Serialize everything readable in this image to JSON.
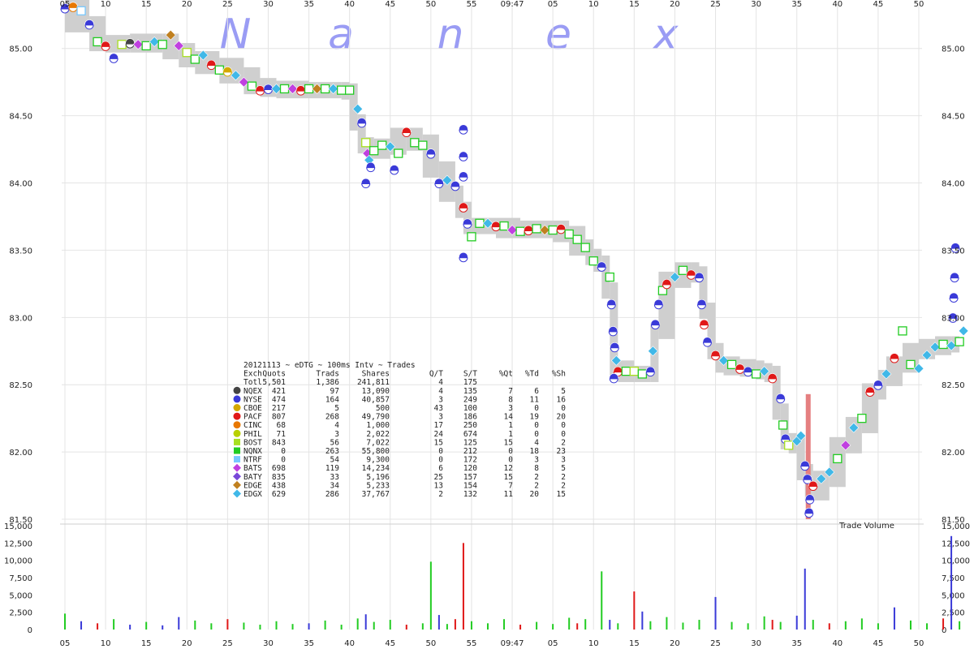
{
  "watermark": [
    "N",
    "a",
    "n",
    "e",
    "x"
  ],
  "chart_data": {
    "type": "scatter",
    "x_tick_labels": [
      "05",
      "10",
      "15",
      "20",
      "25",
      "30",
      "35",
      "40",
      "45",
      "50",
      "55",
      "09:47",
      "05",
      "10",
      "15",
      "20",
      "25",
      "30",
      "35",
      "40",
      "45",
      "50"
    ],
    "y_tick_labels": [
      "85.00",
      "84.50",
      "84.00",
      "83.50",
      "83.00",
      "82.50",
      "82.00",
      "81.50"
    ],
    "ylim": [
      81.5,
      85.3
    ],
    "volume_tick_labels": [
      "15,000",
      "12,500",
      "10,000",
      "7,500",
      "5,000",
      "2,500",
      "0"
    ],
    "volume_label": "Trade Volume",
    "volume_ylim": [
      0,
      15000
    ],
    "price_path": [
      [
        0,
        85.3
      ],
      [
        3,
        85.18
      ],
      [
        5,
        85.04
      ],
      [
        8,
        85.03
      ],
      [
        12,
        85.05
      ],
      [
        14,
        84.98
      ],
      [
        16,
        84.92
      ],
      [
        19,
        84.87
      ],
      [
        22,
        84.8
      ],
      [
        24,
        84.72
      ],
      [
        26,
        84.7
      ],
      [
        30,
        84.69
      ],
      [
        34,
        84.69
      ],
      [
        35,
        84.68
      ],
      [
        36,
        84.45
      ],
      [
        37,
        84.28
      ],
      [
        38,
        84.24
      ],
      [
        40,
        84.27
      ],
      [
        42,
        84.35
      ],
      [
        44,
        84.3
      ],
      [
        46,
        84.1
      ],
      [
        48,
        83.92
      ],
      [
        49,
        83.8
      ],
      [
        50,
        83.68
      ],
      [
        53,
        83.68
      ],
      [
        56,
        83.65
      ],
      [
        60,
        83.66
      ],
      [
        62,
        83.62
      ],
      [
        64,
        83.52
      ],
      [
        65,
        83.45
      ],
      [
        66,
        83.4
      ],
      [
        67,
        83.2
      ],
      [
        68,
        82.62
      ],
      [
        70,
        82.58
      ],
      [
        72,
        82.58
      ],
      [
        73,
        82.9
      ],
      [
        75,
        83.28
      ],
      [
        77,
        83.35
      ],
      [
        78,
        83.32
      ],
      [
        79,
        83.05
      ],
      [
        80,
        82.75
      ],
      [
        81,
        82.65
      ],
      [
        83,
        82.63
      ],
      [
        85,
        82.62
      ],
      [
        86,
        82.6
      ],
      [
        87,
        82.58
      ],
      [
        88,
        82.3
      ],
      [
        89,
        82.08
      ],
      [
        90,
        82.05
      ],
      [
        91,
        81.85
      ],
      [
        92,
        81.7
      ],
      [
        94,
        81.8
      ],
      [
        96,
        82.05
      ],
      [
        98,
        82.2
      ],
      [
        100,
        82.45
      ],
      [
        101,
        82.55
      ],
      [
        103,
        82.65
      ],
      [
        105,
        82.75
      ],
      [
        107,
        82.78
      ],
      [
        109,
        82.8
      ],
      [
        110,
        82.8
      ]
    ],
    "exchanges": [
      {
        "name": "NQEX",
        "color": "#444444",
        "shape": "circle"
      },
      {
        "name": "NYSE",
        "color": "#3a3ad8",
        "shape": "circle"
      },
      {
        "name": "CBOE",
        "color": "#d4a800",
        "shape": "circle"
      },
      {
        "name": "PACF",
        "color": "#e01818",
        "shape": "circle"
      },
      {
        "name": "CINC",
        "color": "#e87800",
        "shape": "circle"
      },
      {
        "name": "PHIL",
        "color": "#b8d000",
        "shape": "circle"
      },
      {
        "name": "BOST",
        "color": "#a8e020",
        "shape": "square"
      },
      {
        "name": "NQNX",
        "color": "#22cc22",
        "shape": "square"
      },
      {
        "name": "NTRF",
        "color": "#78c8ff",
        "shape": "square"
      },
      {
        "name": "BATS",
        "color": "#c040e0",
        "shape": "diamond"
      },
      {
        "name": "BATY",
        "color": "#7848d8",
        "shape": "diamond"
      },
      {
        "name": "EDGE",
        "color": "#c08020",
        "shape": "diamond"
      },
      {
        "name": "EDGX",
        "color": "#40b8e8",
        "shape": "diamond"
      }
    ],
    "trades": [
      [
        0,
        85.3,
        1
      ],
      [
        1,
        85.31,
        4
      ],
      [
        2,
        85.28,
        8
      ],
      [
        3,
        85.18,
        1
      ],
      [
        4,
        85.05,
        7
      ],
      [
        5,
        85.02,
        3
      ],
      [
        6,
        84.93,
        1
      ],
      [
        7,
        85.03,
        6
      ],
      [
        8,
        85.04,
        0
      ],
      [
        9,
        85.03,
        9
      ],
      [
        10,
        85.02,
        7
      ],
      [
        11,
        85.05,
        12
      ],
      [
        12,
        85.03,
        7
      ],
      [
        13,
        85.1,
        11
      ],
      [
        14,
        85.02,
        9
      ],
      [
        15,
        84.97,
        6
      ],
      [
        16,
        84.92,
        7
      ],
      [
        17,
        84.95,
        12
      ],
      [
        18,
        84.88,
        3
      ],
      [
        19,
        84.84,
        7
      ],
      [
        20,
        84.83,
        2
      ],
      [
        21,
        84.8,
        12
      ],
      [
        22,
        84.75,
        9
      ],
      [
        23,
        84.72,
        7
      ],
      [
        24,
        84.69,
        3
      ],
      [
        25,
        84.7,
        1
      ],
      [
        26,
        84.7,
        12
      ],
      [
        27,
        84.7,
        7
      ],
      [
        28,
        84.7,
        9
      ],
      [
        29,
        84.69,
        3
      ],
      [
        30,
        84.7,
        7
      ],
      [
        31,
        84.7,
        11
      ],
      [
        32,
        84.7,
        7
      ],
      [
        33,
        84.7,
        12
      ],
      [
        34,
        84.69,
        7
      ],
      [
        35,
        84.69,
        7
      ],
      [
        36,
        84.55,
        12
      ],
      [
        36.5,
        84.45,
        1
      ],
      [
        37,
        84.3,
        6
      ],
      [
        37.2,
        84.22,
        9
      ],
      [
        37.4,
        84.17,
        12
      ],
      [
        37.6,
        84.12,
        1
      ],
      [
        38,
        84.24,
        7
      ],
      [
        39,
        84.28,
        7
      ],
      [
        40,
        84.27,
        12
      ],
      [
        41,
        84.22,
        7
      ],
      [
        42,
        84.38,
        3
      ],
      [
        43,
        84.3,
        7
      ],
      [
        44,
        84.28,
        7
      ],
      [
        45,
        84.22,
        1
      ],
      [
        46,
        84.0,
        1
      ],
      [
        47,
        84.02,
        12
      ],
      [
        48,
        83.98,
        1
      ],
      [
        49,
        83.82,
        3
      ],
      [
        49.5,
        83.7,
        1
      ],
      [
        50,
        83.6,
        7
      ],
      [
        51,
        83.7,
        7
      ],
      [
        52,
        83.7,
        12
      ],
      [
        53,
        83.68,
        3
      ],
      [
        54,
        83.68,
        7
      ],
      [
        55,
        83.65,
        9
      ],
      [
        56,
        83.64,
        7
      ],
      [
        57,
        83.65,
        3
      ],
      [
        58,
        83.66,
        7
      ],
      [
        59,
        83.65,
        11
      ],
      [
        60,
        83.65,
        7
      ],
      [
        61,
        83.66,
        3
      ],
      [
        62,
        83.62,
        7
      ],
      [
        63,
        83.58,
        7
      ],
      [
        64,
        83.52,
        7
      ],
      [
        65,
        83.42,
        7
      ],
      [
        66,
        83.38,
        1
      ],
      [
        67,
        83.3,
        7
      ],
      [
        67.2,
        83.1,
        1
      ],
      [
        67.4,
        82.9,
        1
      ],
      [
        67.6,
        82.78,
        1
      ],
      [
        67.8,
        82.68,
        12
      ],
      [
        68,
        82.6,
        3
      ],
      [
        69,
        82.6,
        7
      ],
      [
        70,
        82.6,
        6
      ],
      [
        71,
        82.58,
        7
      ],
      [
        72,
        82.6,
        1
      ],
      [
        72.3,
        82.75,
        12
      ],
      [
        72.6,
        82.95,
        1
      ],
      [
        73,
        83.1,
        1
      ],
      [
        73.5,
        83.2,
        7
      ],
      [
        74,
        83.25,
        3
      ],
      [
        75,
        83.3,
        12
      ],
      [
        76,
        83.35,
        7
      ],
      [
        77,
        83.32,
        3
      ],
      [
        78,
        83.3,
        1
      ],
      [
        78.3,
        83.1,
        1
      ],
      [
        78.6,
        82.95,
        3
      ],
      [
        79,
        82.82,
        1
      ],
      [
        80,
        82.72,
        3
      ],
      [
        81,
        82.68,
        12
      ],
      [
        82,
        82.65,
        7
      ],
      [
        83,
        82.62,
        3
      ],
      [
        84,
        82.6,
        1
      ],
      [
        85,
        82.58,
        7
      ],
      [
        86,
        82.6,
        12
      ],
      [
        87,
        82.55,
        3
      ],
      [
        88,
        82.4,
        1
      ],
      [
        88.3,
        82.2,
        7
      ],
      [
        88.6,
        82.1,
        1
      ],
      [
        89,
        82.05,
        6
      ],
      [
        90,
        82.08,
        12
      ],
      [
        90.5,
        82.12,
        12
      ],
      [
        91,
        81.9,
        1
      ],
      [
        91.3,
        81.8,
        1
      ],
      [
        91.6,
        81.65,
        1
      ],
      [
        92,
        81.75,
        3
      ],
      [
        93,
        81.8,
        12
      ],
      [
        94,
        81.85,
        12
      ],
      [
        95,
        81.95,
        7
      ],
      [
        96,
        82.05,
        9
      ],
      [
        97,
        82.18,
        12
      ],
      [
        98,
        82.25,
        7
      ],
      [
        99,
        82.45,
        3
      ],
      [
        100,
        82.5,
        1
      ],
      [
        101,
        82.58,
        12
      ],
      [
        102,
        82.7,
        3
      ],
      [
        103,
        82.9,
        7
      ],
      [
        104,
        82.65,
        7
      ],
      [
        105,
        82.62,
        12
      ],
      [
        106,
        82.72,
        12
      ],
      [
        107,
        82.78,
        12
      ],
      [
        108,
        82.8,
        7
      ],
      [
        109,
        82.79,
        12
      ],
      [
        110,
        82.82,
        7
      ],
      [
        110.5,
        82.9,
        12
      ],
      [
        109.2,
        83.0,
        1
      ],
      [
        109.3,
        83.15,
        1
      ],
      [
        109.4,
        83.3,
        1
      ],
      [
        109.5,
        83.52,
        1
      ],
      [
        49,
        84.4,
        1
      ],
      [
        49,
        84.2,
        1
      ],
      [
        49,
        84.05,
        1
      ],
      [
        49,
        83.45,
        1
      ],
      [
        67.5,
        82.55,
        1
      ],
      [
        91.5,
        81.55,
        1
      ],
      [
        40.5,
        84.1,
        1
      ],
      [
        37,
        84.0,
        1
      ]
    ],
    "volume": [
      [
        0,
        2300,
        7
      ],
      [
        2,
        1200,
        1
      ],
      [
        4,
        900,
        3
      ],
      [
        6,
        1500,
        7
      ],
      [
        8,
        700,
        1
      ],
      [
        10,
        1100,
        7
      ],
      [
        12,
        600,
        1
      ],
      [
        14,
        1800,
        1
      ],
      [
        16,
        1300,
        7
      ],
      [
        18,
        900,
        7
      ],
      [
        20,
        1500,
        3
      ],
      [
        22,
        1000,
        7
      ],
      [
        24,
        700,
        7
      ],
      [
        26,
        1200,
        7
      ],
      [
        28,
        800,
        7
      ],
      [
        30,
        900,
        1
      ],
      [
        32,
        1300,
        7
      ],
      [
        34,
        700,
        7
      ],
      [
        36,
        1600,
        7
      ],
      [
        37,
        2200,
        1
      ],
      [
        38,
        1100,
        7
      ],
      [
        40,
        1400,
        7
      ],
      [
        42,
        700,
        3
      ],
      [
        44,
        900,
        7
      ],
      [
        45,
        9800,
        7
      ],
      [
        46,
        2100,
        1
      ],
      [
        47,
        800,
        7
      ],
      [
        48,
        1500,
        3
      ],
      [
        49,
        12500,
        3
      ],
      [
        50,
        1200,
        7
      ],
      [
        52,
        900,
        7
      ],
      [
        54,
        1500,
        7
      ],
      [
        56,
        700,
        3
      ],
      [
        58,
        1100,
        7
      ],
      [
        60,
        800,
        7
      ],
      [
        62,
        1700,
        7
      ],
      [
        63,
        900,
        3
      ],
      [
        64,
        1500,
        7
      ],
      [
        66,
        8400,
        7
      ],
      [
        67,
        1400,
        1
      ],
      [
        68,
        900,
        7
      ],
      [
        70,
        5500,
        3
      ],
      [
        71,
        2600,
        1
      ],
      [
        72,
        1200,
        7
      ],
      [
        74,
        1800,
        7
      ],
      [
        76,
        1000,
        7
      ],
      [
        78,
        1400,
        7
      ],
      [
        80,
        4700,
        1
      ],
      [
        82,
        1100,
        7
      ],
      [
        84,
        900,
        7
      ],
      [
        86,
        1900,
        7
      ],
      [
        87,
        1400,
        3
      ],
      [
        88,
        1100,
        7
      ],
      [
        90,
        2000,
        1
      ],
      [
        91,
        8800,
        1
      ],
      [
        92,
        1400,
        7
      ],
      [
        94,
        900,
        3
      ],
      [
        96,
        1200,
        7
      ],
      [
        98,
        1600,
        7
      ],
      [
        100,
        900,
        7
      ],
      [
        102,
        3200,
        1
      ],
      [
        104,
        1300,
        7
      ],
      [
        106,
        900,
        7
      ],
      [
        108,
        1600,
        3
      ],
      [
        109,
        13500,
        1
      ],
      [
        110,
        1200,
        7
      ],
      [
        112,
        900,
        7
      ],
      [
        114,
        1100,
        7
      ]
    ]
  },
  "legend": {
    "title": "20121113 ~ eDTG ~ 100ms Intv ~ Trades",
    "header": [
      "Exch",
      "Quots",
      "Trads",
      "Shares",
      "Q/T",
      "S/T",
      "%Qt",
      "%Td",
      "%Sh"
    ],
    "total": [
      "Totl",
      "5,501",
      "1,386",
      "241,811",
      "4",
      "175",
      "",
      "",
      ""
    ],
    "rows": [
      [
        "NQEX",
        "421",
        "97",
        "13,090",
        "4",
        "135",
        "7",
        "6",
        "5"
      ],
      [
        "NYSE",
        "474",
        "164",
        "40,857",
        "3",
        "249",
        "8",
        "11",
        "16"
      ],
      [
        "CBOE",
        "217",
        "5",
        "500",
        "43",
        "100",
        "3",
        "0",
        "0"
      ],
      [
        "PACF",
        "807",
        "268",
        "49,790",
        "3",
        "186",
        "14",
        "19",
        "20"
      ],
      [
        "CINC",
        "68",
        "4",
        "1,000",
        "17",
        "250",
        "1",
        "0",
        "0"
      ],
      [
        "PHIL",
        "71",
        "3",
        "2,022",
        "24",
        "674",
        "1",
        "0",
        "0"
      ],
      [
        "BOST",
        "843",
        "56",
        "7,022",
        "15",
        "125",
        "15",
        "4",
        "2"
      ],
      [
        "NQNX",
        "0",
        "263",
        "55,800",
        "0",
        "212",
        "0",
        "18",
        "23"
      ],
      [
        "NTRF",
        "0",
        "54",
        "9,300",
        "0",
        "172",
        "0",
        "3",
        "3"
      ],
      [
        "BATS",
        "698",
        "119",
        "14,234",
        "6",
        "120",
        "12",
        "8",
        "5"
      ],
      [
        "BATY",
        "835",
        "33",
        "5,196",
        "25",
        "157",
        "15",
        "2",
        "2"
      ],
      [
        "EDGE",
        "438",
        "34",
        "5,233",
        "13",
        "154",
        "7",
        "2",
        "2"
      ],
      [
        "EDGX",
        "629",
        "286",
        "37,767",
        "2",
        "132",
        "11",
        "20",
        "15"
      ]
    ]
  }
}
